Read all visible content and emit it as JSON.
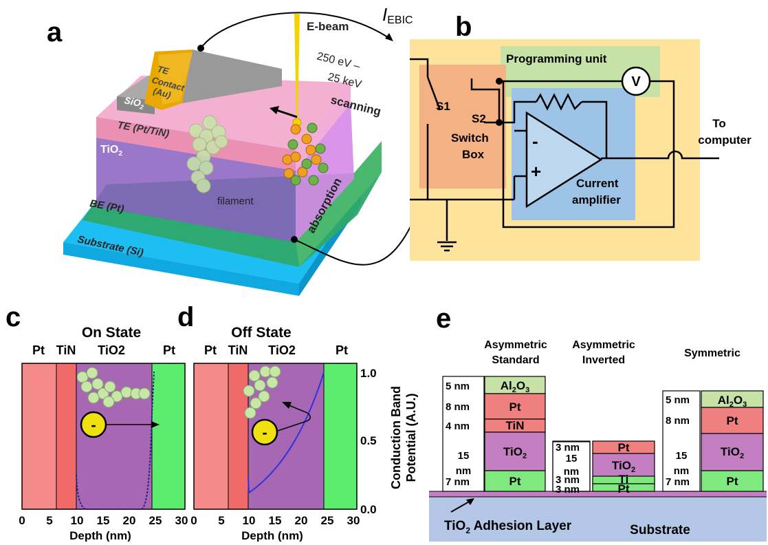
{
  "figure": {
    "panel_labels": [
      "a",
      "b",
      "c",
      "d",
      "e"
    ]
  },
  "panel_a": {
    "ebeam": "E-beam",
    "energy_1": "250 eV –",
    "energy_2": "25 keV",
    "scanning": "scanning",
    "te_contact_1": "TE",
    "te_contact_2": "Contact",
    "te_contact_3": "(Au)",
    "sio2": "SiO",
    "sio2_sub": "2",
    "te": "TE (Pt/TiN)",
    "tio2": "TiO",
    "tio2_sub": "2",
    "filament": "filament",
    "be": "BE (Pt)",
    "substrate": "Substrate (Si)",
    "absorption": "absorption",
    "iebic": "I",
    "iebic_sub": "EBIC"
  },
  "panel_b": {
    "programming_unit": "Programming unit",
    "v": "V",
    "s1": "S1",
    "s2": "S2",
    "switch_box_1": "Switch",
    "switch_box_2": "Box",
    "minus": "-",
    "plus": "+",
    "current_amp_1": "Current",
    "current_amp_2": "amplifier",
    "to_computer_1": "To",
    "to_computer_2": "computer"
  },
  "panel_c": {
    "title": "On State",
    "regions": [
      "Pt",
      "TiN",
      "TiO2",
      "Pt"
    ],
    "xlabel": "Depth (nm)",
    "xticks": [
      "0",
      "5",
      "10",
      "15",
      "20",
      "25",
      "30"
    ],
    "electron": "-"
  },
  "panel_d": {
    "title": "Off State",
    "regions": [
      "Pt",
      "TiN",
      "TiO2",
      "Pt"
    ],
    "xlabel": "Depth (nm)",
    "xticks": [
      "0",
      "5",
      "10",
      "15",
      "20",
      "25",
      "30"
    ],
    "yticks": [
      "0.0",
      "0.5",
      "1.0"
    ],
    "ylabel_1": "Conduction Band",
    "ylabel_2": "Potential (A.U.)",
    "electron": "-"
  },
  "panel_e": {
    "stacks": [
      {
        "title_1": "Asymmetric",
        "title_2": "Standard",
        "layers": [
          {
            "thickness": "5 nm",
            "material": "Al",
            "sub1": "2",
            "mat2": "O",
            "sub2": "3",
            "color": "#c6e2a6"
          },
          {
            "thickness": "8 nm",
            "material": "Pt",
            "color": "#f08080"
          },
          {
            "thickness": "4 nm",
            "material": "TiN",
            "color": "#f08080"
          },
          {
            "thickness": "15 nm",
            "material": "TiO",
            "sub1": "2",
            "color": "#c47fc2"
          },
          {
            "thickness": "7 nm",
            "material": "Pt",
            "color": "#7fe87f"
          }
        ]
      },
      {
        "title_1": "Asymmetric",
        "title_2": "Inverted",
        "layers": [
          {
            "thickness": "3 nm",
            "material": "Pt",
            "color": "#f08080"
          },
          {
            "thickness": "15 nm",
            "material": "TiO",
            "sub1": "2",
            "color": "#c47fc2"
          },
          {
            "thickness": "3 nm",
            "material": "Ti",
            "color": "#7fe87f"
          },
          {
            "thickness": "3 nm",
            "material": "Pt",
            "color": "#7fe87f"
          }
        ]
      },
      {
        "title_1": "Symmetric",
        "layers": [
          {
            "thickness": "5 nm",
            "material": "Al",
            "sub1": "2",
            "mat2": "O",
            "sub2": "3",
            "color": "#c6e2a6"
          },
          {
            "thickness": "8 nm",
            "material": "Pt",
            "color": "#f08080"
          },
          {
            "thickness": "15 nm",
            "material": "TiO",
            "sub1": "2",
            "color": "#c47fc2"
          },
          {
            "thickness": "7 nm",
            "material": "Pt",
            "color": "#7fe87f"
          }
        ]
      }
    ],
    "adhesion": "TiO",
    "adhesion_sub": "2",
    "adhesion_rest": " Adhesion Layer",
    "substrate": "Substrate"
  }
}
